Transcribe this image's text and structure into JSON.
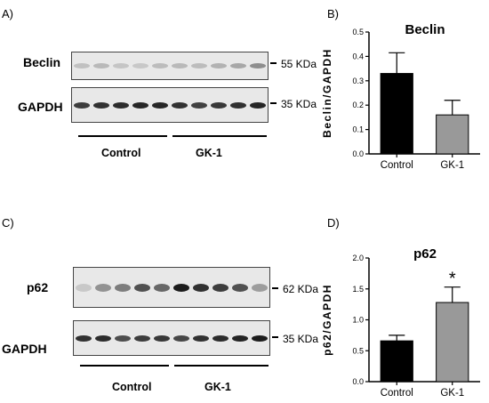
{
  "panels": {
    "A": "A)",
    "B": "B)",
    "C": "C)",
    "D": "D)"
  },
  "blot_A": {
    "row1_label": "Beclin",
    "row1_kda": "55 KDa",
    "row2_label": "GAPDH",
    "row2_kda": "35 KDa",
    "group1": "Control",
    "group2": "GK-1",
    "row1_intensity": [
      0.18,
      0.22,
      0.16,
      0.15,
      0.2,
      0.22,
      0.2,
      0.25,
      0.3,
      0.42
    ],
    "row2_intensity": [
      0.8,
      0.85,
      0.88,
      0.9,
      0.9,
      0.85,
      0.78,
      0.82,
      0.86,
      0.9
    ]
  },
  "blot_C": {
    "row1_label": "p62",
    "row1_kda": "62 KDa",
    "row2_label": "GAPDH",
    "row2_kda": "35 KDa",
    "group1": "Control",
    "group2": "GK-1",
    "row1_intensity": [
      0.15,
      0.4,
      0.5,
      0.7,
      0.6,
      0.95,
      0.85,
      0.8,
      0.7,
      0.35
    ],
    "row2_intensity": [
      0.85,
      0.88,
      0.72,
      0.8,
      0.82,
      0.75,
      0.85,
      0.88,
      0.92,
      0.95
    ]
  },
  "chart_data": [
    {
      "type": "bar",
      "title": "Beclin",
      "ylabel": "Beclin/GAPDH",
      "xlabel": "",
      "categories": [
        "Control",
        "GK-1"
      ],
      "values": [
        0.33,
        0.16
      ],
      "errors": [
        0.085,
        0.06
      ],
      "colors": [
        "#000000",
        "#999999"
      ],
      "ylim": [
        0,
        0.5
      ],
      "yticks": [
        "0.0",
        "0.1",
        "0.2",
        "0.3",
        "0.4",
        "0.5"
      ],
      "annotations": []
    },
    {
      "type": "bar",
      "title": "p62",
      "ylabel": "p62/GAPDH",
      "xlabel": "",
      "categories": [
        "Control",
        "GK-1"
      ],
      "values": [
        0.66,
        1.28
      ],
      "errors": [
        0.09,
        0.25
      ],
      "colors": [
        "#000000",
        "#999999"
      ],
      "ylim": [
        0,
        2.0
      ],
      "yticks": [
        "0.0",
        "0.5",
        "1.0",
        "1.5",
        "2.0"
      ],
      "annotations": [
        "",
        "*"
      ]
    }
  ]
}
